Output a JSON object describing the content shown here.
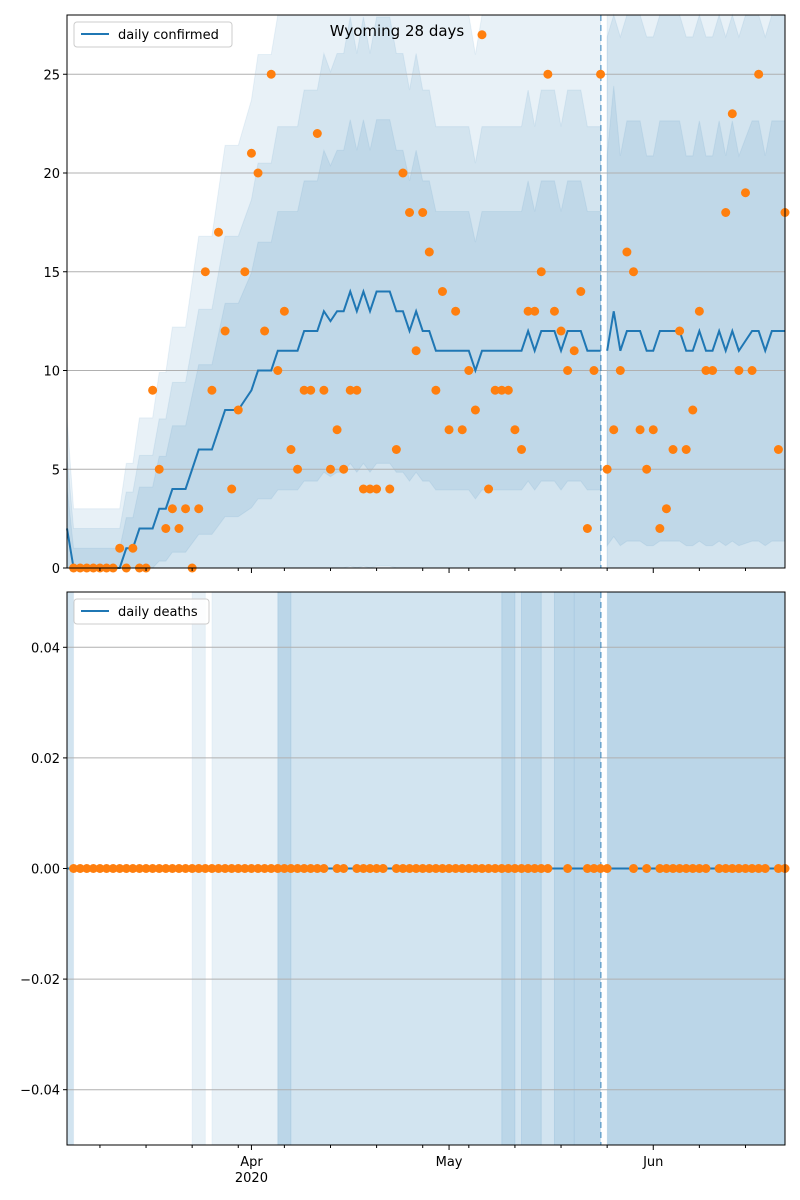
{
  "chart_data": [
    {
      "type": "line",
      "title": "Wyoming 28 days",
      "start_date": "2020-03-04",
      "n_days": 110,
      "ylim": [
        0,
        28
      ],
      "yticks": [
        0,
        5,
        10,
        15,
        20,
        25
      ],
      "ytick_labels": [
        "0",
        "5",
        "10",
        "15",
        "20",
        "25"
      ],
      "grid": true,
      "legend": {
        "label": "daily confirmed",
        "placement": "top-left"
      },
      "forecast_start_index": 82,
      "forecast_marker_label": "forecast start (dashed line)",
      "series": [
        {
          "name": "daily confirmed",
          "kind": "line",
          "color": "#1f77b4",
          "values": [
            2,
            0,
            0,
            0,
            0,
            0,
            0,
            0,
            0,
            1,
            1,
            2,
            2,
            2,
            3,
            3,
            4,
            4,
            4,
            5,
            6,
            6,
            6,
            7,
            8,
            8,
            8,
            8.5,
            9,
            10,
            10,
            10,
            11,
            11,
            11,
            11,
            12,
            12,
            12,
            13,
            12.5,
            13,
            13,
            14,
            13,
            14,
            13,
            14,
            14,
            14,
            13,
            13,
            12,
            13,
            12,
            12,
            11,
            11,
            11,
            11,
            11,
            11,
            10,
            11,
            11,
            11,
            11,
            11,
            11,
            11,
            12,
            11,
            12,
            12,
            12,
            11,
            12,
            12,
            12,
            11,
            11,
            11,
            11,
            13,
            11,
            12,
            12,
            12,
            11,
            11,
            12,
            12,
            12,
            12,
            11,
            11,
            12,
            11,
            11,
            12,
            11,
            12,
            11,
            11.5,
            12,
            12,
            11,
            12,
            12,
            12
          ]
        },
        {
          "name": "observed",
          "kind": "scatter",
          "color": "#ff7f0e",
          "values": [
            null,
            0,
            0,
            0,
            0,
            0,
            0,
            0,
            1,
            0,
            1,
            0,
            0,
            9,
            5,
            2,
            3,
            2,
            3,
            0,
            3,
            15,
            9,
            17,
            12,
            4,
            8,
            15,
            21,
            20,
            12,
            25,
            10,
            13,
            6,
            5,
            9,
            9,
            22,
            9,
            5,
            7,
            5,
            9,
            9,
            4,
            4,
            4,
            null,
            4,
            6,
            20,
            18,
            11,
            18,
            16,
            9,
            14,
            7,
            13,
            7,
            10,
            8,
            27,
            4,
            9,
            9,
            9,
            7,
            6,
            13,
            13,
            15,
            25,
            13,
            12,
            10,
            11,
            14,
            2,
            10,
            25,
            5,
            7,
            10,
            16,
            15,
            7,
            5,
            7,
            2,
            3,
            6,
            12,
            6,
            8,
            13,
            10,
            10,
            null,
            18,
            23,
            10,
            19,
            10,
            25,
            null,
            null,
            6,
            18
          ]
        }
      ],
      "band_model": {
        "inner": [
          0.55,
          1
        ],
        "middle": [
          0.85,
          2
        ],
        "outer": [
          1.3,
          3
        ],
        "forecast_scale": 1.4
      }
    },
    {
      "type": "line",
      "ylim": [
        -0.05,
        0.05
      ],
      "yticks": [
        -0.04,
        -0.02,
        0.0,
        0.02,
        0.04
      ],
      "ytick_labels": [
        "−0.04",
        "−0.02",
        "0.00",
        "0.02",
        "0.04"
      ],
      "grid": true,
      "legend": {
        "label": "daily deaths",
        "placement": "top-left"
      },
      "forecast_start_index": 82,
      "series": [
        {
          "name": "daily deaths",
          "kind": "line",
          "color": "#1f77b4",
          "constant": 0
        },
        {
          "name": "observed",
          "kind": "scatter",
          "color": "#ff7f0e",
          "values": [
            null,
            0,
            0,
            0,
            0,
            0,
            0,
            0,
            0,
            0,
            0,
            0,
            0,
            0,
            0,
            0,
            0,
            0,
            0,
            0,
            0,
            0,
            0,
            0,
            0,
            0,
            0,
            0,
            0,
            0,
            0,
            0,
            0,
            0,
            0,
            0,
            0,
            0,
            0,
            0,
            null,
            0,
            0,
            null,
            0,
            0,
            0,
            0,
            0,
            null,
            0,
            0,
            0,
            0,
            0,
            0,
            0,
            0,
            0,
            0,
            0,
            0,
            0,
            0,
            0,
            0,
            0,
            0,
            0,
            0,
            0,
            0,
            0,
            0,
            null,
            null,
            0,
            null,
            null,
            0,
            0,
            0,
            0,
            null,
            null,
            null,
            0,
            null,
            0,
            null,
            0,
            0,
            0,
            0,
            0,
            0,
            0,
            0,
            null,
            0,
            0,
            0,
            0,
            0,
            0,
            0,
            0,
            null,
            0,
            0
          ]
        }
      ],
      "shaded_ranges": [
        {
          "from": 0,
          "to": 1,
          "level": 2
        },
        {
          "from": 19,
          "to": 21,
          "level": 1
        },
        {
          "from": 22,
          "to": 32,
          "level": 1
        },
        {
          "from": 32,
          "to": 34,
          "level": 3
        },
        {
          "from": 34,
          "to": 66,
          "level": 2
        },
        {
          "from": 66,
          "to": 68,
          "level": 3
        },
        {
          "from": 68,
          "to": 69,
          "level": 2
        },
        {
          "from": 69,
          "to": 72,
          "level": 3
        },
        {
          "from": 72,
          "to": 74,
          "level": 2
        },
        {
          "from": 74,
          "to": 77,
          "level": 3
        },
        {
          "from": 77,
          "to": 81,
          "level": 3
        },
        {
          "from": 82,
          "to": 109,
          "level": 3
        }
      ]
    }
  ],
  "xaxis": {
    "major_ticks": [
      {
        "index": 28,
        "label": "Apr",
        "sublabel": "2020"
      },
      {
        "index": 58,
        "label": "May"
      },
      {
        "index": 89,
        "label": "Jun"
      }
    ],
    "minor_ticks": [
      5,
      12,
      19,
      26,
      33,
      40,
      47,
      54,
      61,
      68,
      75,
      82,
      96,
      103
    ]
  }
}
